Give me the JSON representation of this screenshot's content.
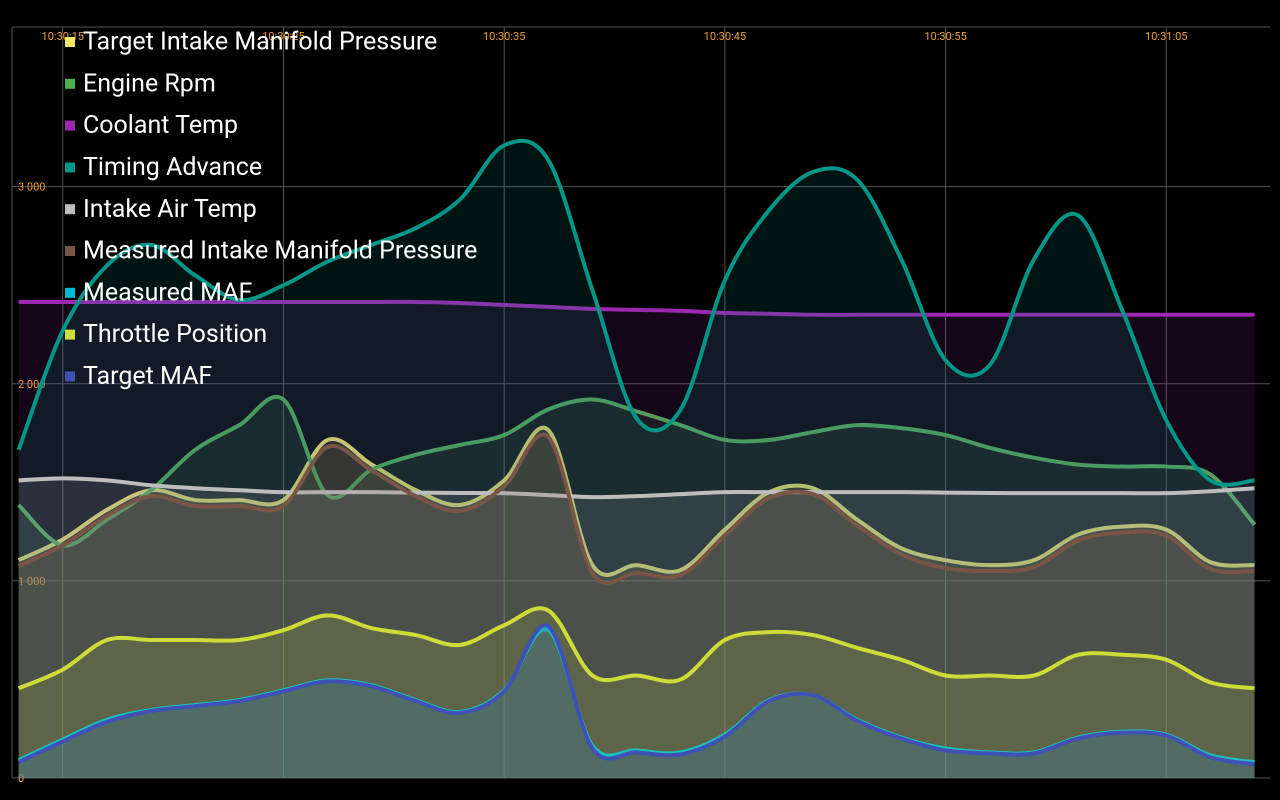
{
  "chart_data": {
    "type": "line",
    "x": [
      13,
      15,
      17,
      19,
      21,
      23,
      25,
      27,
      29,
      31,
      33,
      35,
      37,
      39,
      41,
      43,
      45,
      47,
      49,
      51,
      53,
      55,
      57,
      59,
      61,
      63,
      65,
      67,
      69
    ],
    "xlim": [
      12.7,
      69.7
    ],
    "xticks": [
      {
        "value": 15,
        "label": "10:30:15"
      },
      {
        "value": 25,
        "label": "10:30:25"
      },
      {
        "value": 35,
        "label": "10:30:35"
      },
      {
        "value": 45,
        "label": "10:30:45"
      },
      {
        "value": 55,
        "label": "10:30:55"
      },
      {
        "value": 65,
        "label": "10:31:05"
      }
    ],
    "ylim": [
      0,
      3810
    ],
    "yticks": [
      0,
      {
        "value": 1000,
        "label": "1 000"
      },
      {
        "value": 2000,
        "label": "2 000"
      },
      {
        "value": 3000,
        "label": "3 000"
      }
    ],
    "grid": true,
    "legend": "top-left",
    "series": [
      {
        "name": "Target Intake Manifold Pressure",
        "color": "#f5e663",
        "values": [
          1105,
          1210,
          1360,
          1460,
          1410,
          1410,
          1410,
          1715,
          1590,
          1460,
          1385,
          1510,
          1765,
          1080,
          1080,
          1055,
          1260,
          1450,
          1470,
          1310,
          1165,
          1105,
          1080,
          1105,
          1235,
          1275,
          1260,
          1095,
          1080
        ]
      },
      {
        "name": "Engine Rpm",
        "color": "#4caf50",
        "values": [
          1385,
          1180,
          1310,
          1460,
          1665,
          1790,
          1920,
          1435,
          1565,
          1640,
          1690,
          1740,
          1870,
          1920,
          1860,
          1790,
          1715,
          1715,
          1755,
          1790,
          1775,
          1740,
          1675,
          1625,
          1590,
          1580,
          1580,
          1540,
          1285
        ]
      },
      {
        "name": "Coolant Temp",
        "color": "#9c27b0",
        "values": [
          2415,
          2415,
          2415,
          2415,
          2415,
          2415,
          2415,
          2415,
          2415,
          2415,
          2410,
          2400,
          2390,
          2380,
          2375,
          2370,
          2360,
          2355,
          2350,
          2350,
          2350,
          2350,
          2350,
          2350,
          2350,
          2350,
          2350,
          2350,
          2350
        ]
      },
      {
        "name": "Timing Advance",
        "color": "#009688",
        "values": [
          1665,
          2270,
          2600,
          2705,
          2550,
          2425,
          2500,
          2620,
          2705,
          2790,
          2935,
          3210,
          3135,
          2475,
          1825,
          1870,
          2525,
          2880,
          3075,
          3035,
          2630,
          2120,
          2095,
          2630,
          2855,
          2375,
          1815,
          1510,
          1510
        ]
      },
      {
        "name": "Intake Air Temp",
        "color": "#bdbdbd",
        "values": [
          1510,
          1520,
          1510,
          1485,
          1470,
          1460,
          1450,
          1450,
          1450,
          1448,
          1446,
          1445,
          1435,
          1425,
          1430,
          1440,
          1450,
          1450,
          1450,
          1450,
          1450,
          1448,
          1446,
          1445,
          1445,
          1445,
          1445,
          1455,
          1470
        ]
      },
      {
        "name": "Measured Intake Manifold Pressure",
        "color": "#795548",
        "values": [
          1075,
          1180,
          1330,
          1430,
          1380,
          1380,
          1380,
          1680,
          1560,
          1430,
          1355,
          1480,
          1730,
          1040,
          1040,
          1030,
          1230,
          1420,
          1440,
          1280,
          1135,
          1065,
          1050,
          1070,
          1205,
          1245,
          1230,
          1060,
          1050
        ]
      },
      {
        "name": "Measured MAF",
        "color": "#00bcd4",
        "values": [
          90,
          195,
          295,
          345,
          370,
          395,
          445,
          495,
          470,
          395,
          335,
          445,
          750,
          165,
          140,
          130,
          220,
          395,
          420,
          295,
          205,
          150,
          130,
          130,
          205,
          235,
          220,
          115,
          80
        ]
      },
      {
        "name": "Throttle Position",
        "color": "#cddc39",
        "values": [
          455,
          550,
          700,
          700,
          700,
          700,
          750,
          825,
          760,
          725,
          675,
          775,
          850,
          520,
          520,
          500,
          700,
          740,
          725,
          660,
          600,
          520,
          520,
          520,
          625,
          625,
          600,
          485,
          455
        ]
      },
      {
        "name": "Target MAF",
        "color": "#3f51b5",
        "values": [
          80,
          185,
          285,
          340,
          365,
          390,
          440,
          490,
          465,
          390,
          330,
          440,
          770,
          150,
          130,
          120,
          210,
          390,
          420,
          290,
          200,
          140,
          125,
          125,
          200,
          230,
          215,
          105,
          70
        ]
      }
    ]
  }
}
